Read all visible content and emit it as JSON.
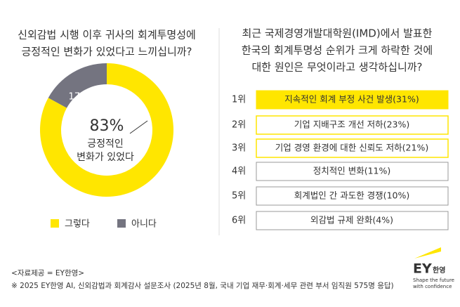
{
  "chart_data": {
    "type": "pie",
    "title": [
      "신외감법 시행 이후 귀사의 회계투명성에",
      "긍정적인 변화가 있었다고 느끼십니까?"
    ],
    "categories": [
      "그렇다",
      "아니다"
    ],
    "values": [
      83,
      17
    ],
    "value_labels": [
      "83%",
      "17%"
    ],
    "colors": [
      "#ffe600",
      "#747480"
    ],
    "annotation": [
      "긍정적인",
      "변화가 있었다"
    ]
  },
  "ranking": {
    "title": [
      "최근 국제경영개발대학원(IMD)에서 발표한",
      "한국의 회계투명성 순위가 크게 하락한 것에",
      "대한 원인은 무엇이라고 생각하십니까?"
    ],
    "items": [
      {
        "rank": "1위",
        "label": "지속적인 회계 부정 사건 발생(31%)"
      },
      {
        "rank": "2위",
        "label": "기업 지배구조 개선 저하(23%)"
      },
      {
        "rank": "3위",
        "label": "기업 경영 환경에 대한 신뢰도 저하(21%)"
      },
      {
        "rank": "4위",
        "label": "정치적인 변화(11%)"
      },
      {
        "rank": "5위",
        "label": "회계법인 간 과도한 경쟁(10%)"
      },
      {
        "rank": "6위",
        "label": "외감법 규제 완화(4%)"
      }
    ]
  },
  "source": "<자료제공 = EY한영>",
  "note": "※ 2025 EY한영 AI, 신외감법과 회계감사 설문조사 (2025년 8월, 국내 기업 재무·회계·세무 관련 부서 임직원 575명 응답)",
  "logo": {
    "name": "EY",
    "sub": "한영",
    "tagline": [
      "Shape the future",
      "with confidence"
    ]
  }
}
